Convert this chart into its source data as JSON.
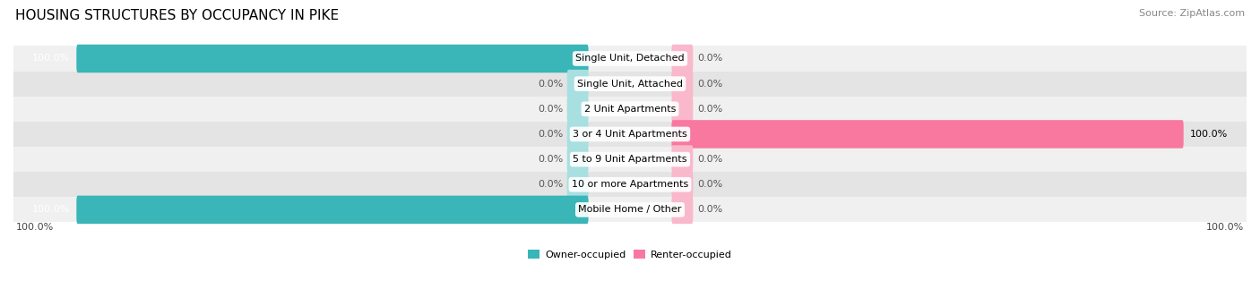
{
  "title": "HOUSING STRUCTURES BY OCCUPANCY IN PIKE",
  "source": "Source: ZipAtlas.com",
  "categories": [
    "Single Unit, Detached",
    "Single Unit, Attached",
    "2 Unit Apartments",
    "3 or 4 Unit Apartments",
    "5 to 9 Unit Apartments",
    "10 or more Apartments",
    "Mobile Home / Other"
  ],
  "owner_values": [
    100.0,
    0.0,
    0.0,
    0.0,
    0.0,
    0.0,
    100.0
  ],
  "renter_values": [
    0.0,
    0.0,
    0.0,
    100.0,
    0.0,
    0.0,
    0.0
  ],
  "owner_color": "#3ab5b8",
  "renter_color": "#f878a0",
  "owner_color_light": "#a8dfe0",
  "renter_color_light": "#f9b8cc",
  "row_bg_even": "#f0f0f0",
  "row_bg_odd": "#e4e4e4",
  "title_fontsize": 11,
  "source_fontsize": 8,
  "label_fontsize": 8,
  "legend_fontsize": 8,
  "axis_label_fontsize": 8,
  "figsize": [
    14.06,
    3.42
  ],
  "dpi": 100
}
